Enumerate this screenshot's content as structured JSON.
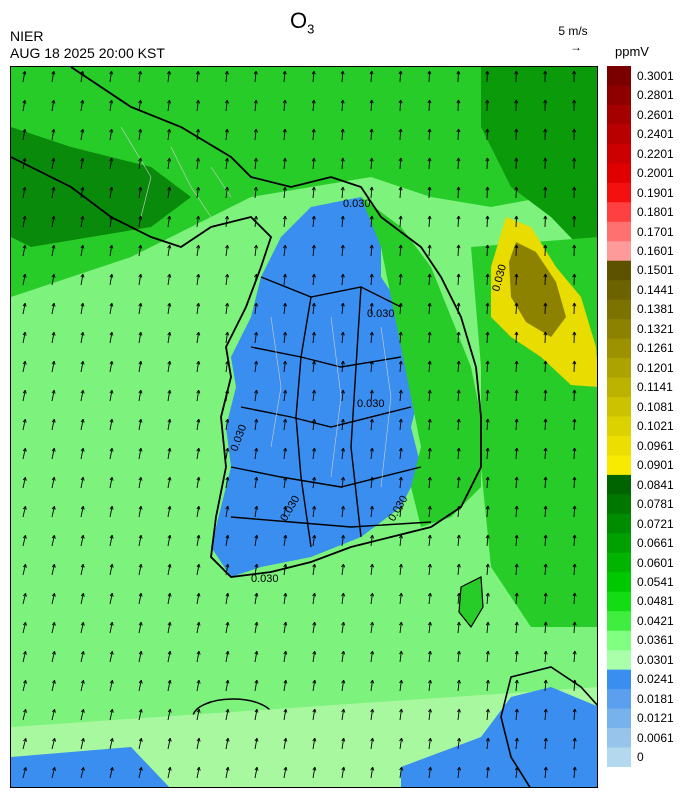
{
  "header": {
    "title_main": "O",
    "title_sub": "3",
    "org": "NIER",
    "timestamp": "AUG 18 2025 20:00 KST",
    "wind_reference": "5 m/s",
    "unit": "ppmV"
  },
  "colorbar": {
    "labels": [
      "0.3001",
      "0.2801",
      "0.2601",
      "0.2401",
      "0.2201",
      "0.2001",
      "0.1901",
      "0.1801",
      "0.1701",
      "0.1601",
      "0.1501",
      "0.1441",
      "0.1381",
      "0.1321",
      "0.1261",
      "0.1201",
      "0.1141",
      "0.1081",
      "0.1021",
      "0.0961",
      "0.0901",
      "0.0841",
      "0.0781",
      "0.0721",
      "0.0661",
      "0.0601",
      "0.0541",
      "0.0481",
      "0.0421",
      "0.0361",
      "0.0301",
      "0.0241",
      "0.0181",
      "0.0121",
      "0.0061",
      "0"
    ],
    "colors": [
      "#7a0000",
      "#8e0000",
      "#a40000",
      "#b80000",
      "#cc0000",
      "#e00000",
      "#f51010",
      "#ff4040",
      "#ff7070",
      "#ff9a9a",
      "#5c5200",
      "#6c6200",
      "#7c7200",
      "#8c8200",
      "#9c9200",
      "#aca200",
      "#bcb200",
      "#ccc200",
      "#dcd200",
      "#ecdf00",
      "#f8ea00",
      "#006400",
      "#007800",
      "#008c00",
      "#00a000",
      "#00b400",
      "#00c800",
      "#14dc14",
      "#40ee40",
      "#80ff80",
      "#aaffaa",
      "#3a8ef0",
      "#5aa0ee",
      "#78b2ec",
      "#96c4ea",
      "#b4d8ee"
    ]
  },
  "contour_labels": [
    "0.030",
    "0.030",
    "0.030",
    "0.030",
    "0.030",
    "0.030",
    "0.030",
    "0.030"
  ],
  "map_colors": {
    "sea_light_green": "#7df27d",
    "land_blue": "#3a8ef0",
    "mid_green": "#28cc28",
    "dark_green": "#0a8a0a",
    "yellow": "#e8dc00",
    "olive": "#8c8200",
    "pale_green": "#a8f8a0",
    "boundary": "#000000"
  },
  "icons": [
    "wind-vector-icon"
  ]
}
